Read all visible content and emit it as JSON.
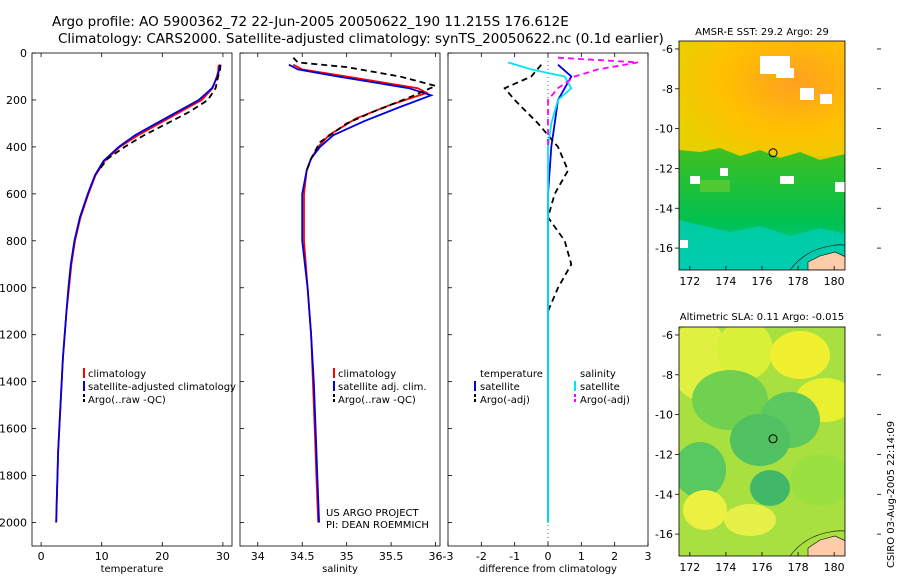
{
  "header": {
    "line1": "Argo profile: AO 5900362_72 22-Jun-2005 20050622_190 11.215S 176.612E",
    "line2": "Climatology: CARS2000. Satellite-adjusted climatology: synTS_20050622.nc (0.1d earlier)"
  },
  "side_stamp": "CSIRO 03-Aug-2005 22:14:09",
  "colors": {
    "red": "#ff0000",
    "blue": "#0000dd",
    "black": "#000000",
    "cyan": "#00e5ee",
    "magenta": "#ff00ff"
  },
  "chart_data": [
    {
      "type": "line",
      "xlabel": "temperature",
      "ylabel": "",
      "xlim": [
        -1.5,
        31.5
      ],
      "ylim": [
        0,
        2100
      ],
      "y_inverted": true,
      "xticks": [
        0,
        10,
        20,
        30
      ],
      "yticks": [
        0,
        200,
        400,
        600,
        800,
        1000,
        1200,
        1400,
        1600,
        1800,
        2000
      ],
      "legend": [
        {
          "label": "climatology",
          "color": "#ff0000",
          "dash": false
        },
        {
          "label": "satellite-adjusted climatology",
          "color": "#0000dd",
          "dash": false
        },
        {
          "label": "Argo(..raw -QC)",
          "color": "#000000",
          "dash": true
        }
      ],
      "series": [
        {
          "name": "climatology",
          "color": "#ff0000",
          "dash": false,
          "points": [
            [
              29.3,
              50
            ],
            [
              29.2,
              80
            ],
            [
              29.0,
              100
            ],
            [
              28.3,
              150
            ],
            [
              26.5,
              200
            ],
            [
              23,
              250
            ],
            [
              19.5,
              300
            ],
            [
              16,
              350
            ],
            [
              13,
              400
            ],
            [
              10.5,
              460
            ],
            [
              9,
              520
            ],
            [
              7.8,
              600
            ],
            [
              6.5,
              700
            ],
            [
              5.6,
              800
            ],
            [
              5,
              900
            ],
            [
              4.6,
              1000
            ],
            [
              4.2,
              1100
            ],
            [
              3.9,
              1200
            ],
            [
              3.6,
              1300
            ],
            [
              3.4,
              1400
            ],
            [
              3.2,
              1500
            ],
            [
              3,
              1600
            ],
            [
              2.8,
              1700
            ],
            [
              2.7,
              1800
            ],
            [
              2.6,
              1900
            ],
            [
              2.5,
              2000
            ]
          ]
        },
        {
          "name": "satellite-adjusted climatology",
          "color": "#0000dd",
          "dash": false,
          "points": [
            [
              29.5,
              50
            ],
            [
              29.3,
              80
            ],
            [
              29.1,
              100
            ],
            [
              28.2,
              150
            ],
            [
              26,
              200
            ],
            [
              22.5,
              250
            ],
            [
              19,
              300
            ],
            [
              15.5,
              350
            ],
            [
              12.8,
              400
            ],
            [
              10.3,
              460
            ],
            [
              8.9,
              520
            ],
            [
              7.7,
              600
            ],
            [
              6.4,
              700
            ],
            [
              5.5,
              800
            ],
            [
              4.9,
              900
            ],
            [
              4.5,
              1000
            ],
            [
              4.2,
              1100
            ],
            [
              3.9,
              1200
            ],
            [
              3.6,
              1300
            ],
            [
              3.4,
              1400
            ],
            [
              3.2,
              1500
            ],
            [
              3,
              1600
            ],
            [
              2.8,
              1700
            ],
            [
              2.7,
              1800
            ],
            [
              2.6,
              1900
            ],
            [
              2.5,
              2000
            ]
          ]
        },
        {
          "name": "Argo(..raw -QC)",
          "color": "#000000",
          "dash": true,
          "points": [
            [
              29.6,
              50
            ],
            [
              29.5,
              80
            ],
            [
              29.2,
              100
            ],
            [
              28.8,
              150
            ],
            [
              27.5,
              200
            ],
            [
              24.5,
              250
            ],
            [
              20.8,
              300
            ],
            [
              17,
              350
            ],
            [
              13.8,
              400
            ],
            [
              11,
              450
            ],
            [
              9.5,
              500
            ]
          ]
        }
      ]
    },
    {
      "type": "line",
      "xlabel": "salinity",
      "xlim": [
        33.8,
        36.05
      ],
      "ylim": [
        0,
        2100
      ],
      "y_inverted": true,
      "xticks": [
        34,
        34.5,
        35,
        35.5,
        36
      ],
      "annotation": [
        "US ARGO PROJECT",
        "PI: DEAN ROEMMICH"
      ],
      "legend": [
        {
          "label": "climatology",
          "color": "#ff0000",
          "dash": false
        },
        {
          "label": "satellite adj. clim.",
          "color": "#0000dd",
          "dash": false
        },
        {
          "label": "Argo(..raw -QC)",
          "color": "#000000",
          "dash": true
        }
      ],
      "series": [
        {
          "name": "climatology",
          "color": "#ff0000",
          "dash": false,
          "points": [
            [
              34.4,
              50
            ],
            [
              34.5,
              70
            ],
            [
              35,
              100
            ],
            [
              35.8,
              150
            ],
            [
              35.9,
              170
            ],
            [
              35.5,
              220
            ],
            [
              35.1,
              280
            ],
            [
              34.8,
              350
            ],
            [
              34.68,
              400
            ],
            [
              34.6,
              450
            ],
            [
              34.55,
              500
            ],
            [
              34.52,
              600
            ],
            [
              34.52,
              800
            ],
            [
              34.56,
              1000
            ],
            [
              34.6,
              1200
            ],
            [
              34.62,
              1400
            ],
            [
              34.64,
              1600
            ],
            [
              34.66,
              1800
            ],
            [
              34.68,
              2000
            ]
          ]
        },
        {
          "name": "satellite adj. clim.",
          "color": "#0000dd",
          "dash": false,
          "points": [
            [
              34.35,
              50
            ],
            [
              34.45,
              70
            ],
            [
              34.9,
              100
            ],
            [
              35.7,
              150
            ],
            [
              35.95,
              180
            ],
            [
              35.6,
              230
            ],
            [
              35.2,
              290
            ],
            [
              34.85,
              350
            ],
            [
              34.7,
              400
            ],
            [
              34.6,
              450
            ],
            [
              34.55,
              500
            ],
            [
              34.5,
              600
            ],
            [
              34.5,
              800
            ],
            [
              34.56,
              1000
            ],
            [
              34.6,
              1200
            ],
            [
              34.63,
              1400
            ],
            [
              34.65,
              1600
            ],
            [
              34.67,
              1800
            ],
            [
              34.69,
              2000
            ]
          ]
        },
        {
          "name": "Argo(..raw -QC)",
          "color": "#000000",
          "dash": true,
          "points": [
            [
              34.4,
              20
            ],
            [
              34.45,
              40
            ],
            [
              35,
              60
            ],
            [
              35.6,
              100
            ],
            [
              36,
              140
            ],
            [
              35.7,
              190
            ],
            [
              35.3,
              250
            ],
            [
              35,
              300
            ],
            [
              34.85,
              340
            ],
            [
              34.7,
              380
            ],
            [
              34.6,
              450
            ],
            [
              34.55,
              500
            ]
          ]
        }
      ]
    },
    {
      "type": "line",
      "xlabel": "difference from climatology",
      "xlim": [
        -3,
        3
      ],
      "ylim": [
        0,
        2100
      ],
      "y_inverted": true,
      "xticks": [
        -3,
        -2,
        -1,
        0,
        1,
        2,
        3
      ],
      "legend": [
        {
          "label": "temperature",
          "color": "",
          "dash": false
        },
        {
          "label": "satellite",
          "color": "#0000dd",
          "dash": false
        },
        {
          "label": "Argo(-adj)",
          "color": "#000000",
          "dash": true
        },
        {
          "label": "salinity",
          "color": "",
          "dash": false
        },
        {
          "label": "satellite",
          "color": "#00e5ee",
          "dash": false
        },
        {
          "label": "Argo(-adj)",
          "color": "#ff00ff",
          "dash": true
        }
      ],
      "series": [
        {
          "name": "temperature satellite",
          "color": "#0000dd",
          "dash": false,
          "points": [
            [
              0.3,
              50
            ],
            [
              0.7,
              100
            ],
            [
              0.5,
              150
            ],
            [
              0.3,
              200
            ],
            [
              0.2,
              300
            ],
            [
              0.1,
              400
            ],
            [
              0.05,
              500
            ],
            [
              0,
              600
            ],
            [
              0,
              2000
            ]
          ]
        },
        {
          "name": "temperature Argo(-adj)",
          "color": "#000000",
          "dash": true,
          "points": [
            [
              -0.2,
              50
            ],
            [
              -0.5,
              100
            ],
            [
              -1.3,
              150
            ],
            [
              -1,
              200
            ],
            [
              -0.3,
              300
            ],
            [
              0.3,
              400
            ],
            [
              0.6,
              500
            ],
            [
              0.2,
              600
            ],
            [
              0,
              700
            ],
            [
              0.5,
              800
            ],
            [
              0.7,
              900
            ],
            [
              0.3,
              1000
            ],
            [
              0,
              1100
            ]
          ]
        },
        {
          "name": "salinity satellite",
          "color": "#00e5ee",
          "dash": false,
          "points": [
            [
              -1.2,
              40
            ],
            [
              -0.5,
              70
            ],
            [
              0.5,
              100
            ],
            [
              0.7,
              150
            ],
            [
              0.3,
              200
            ],
            [
              0.1,
              300
            ],
            [
              0,
              400
            ],
            [
              0,
              2000
            ]
          ]
        },
        {
          "name": "salinity Argo(-adj)",
          "color": "#ff00ff",
          "dash": true,
          "points": [
            [
              0.3,
              20
            ],
            [
              2.7,
              40
            ],
            [
              1.5,
              70
            ],
            [
              0.8,
              100
            ],
            [
              0.3,
              150
            ],
            [
              0,
              200
            ],
            [
              0,
              400
            ]
          ]
        }
      ]
    },
    {
      "type": "heatmap",
      "title": "AMSR-E SST: 29.2 Argo: 29",
      "xlim": [
        171.4,
        180.6
      ],
      "ylim": [
        -17.1,
        -5.6
      ],
      "xticks": [
        172,
        174,
        176,
        178,
        180
      ],
      "yticks": [
        -6,
        -8,
        -10,
        -12,
        -14,
        -16
      ],
      "profile_location": {
        "lon": 176.612,
        "lat": -11.215
      }
    },
    {
      "type": "heatmap",
      "title": "Altimetric SLA: 0.11 Argo: -0.015",
      "xlim": [
        171.4,
        180.6
      ],
      "ylim": [
        -17.1,
        -5.6
      ],
      "xticks": [
        172,
        174,
        176,
        178,
        180
      ],
      "yticks": [
        -6,
        -8,
        -10,
        -12,
        -14,
        -16
      ],
      "profile_location": {
        "lon": 176.612,
        "lat": -11.215
      }
    }
  ]
}
